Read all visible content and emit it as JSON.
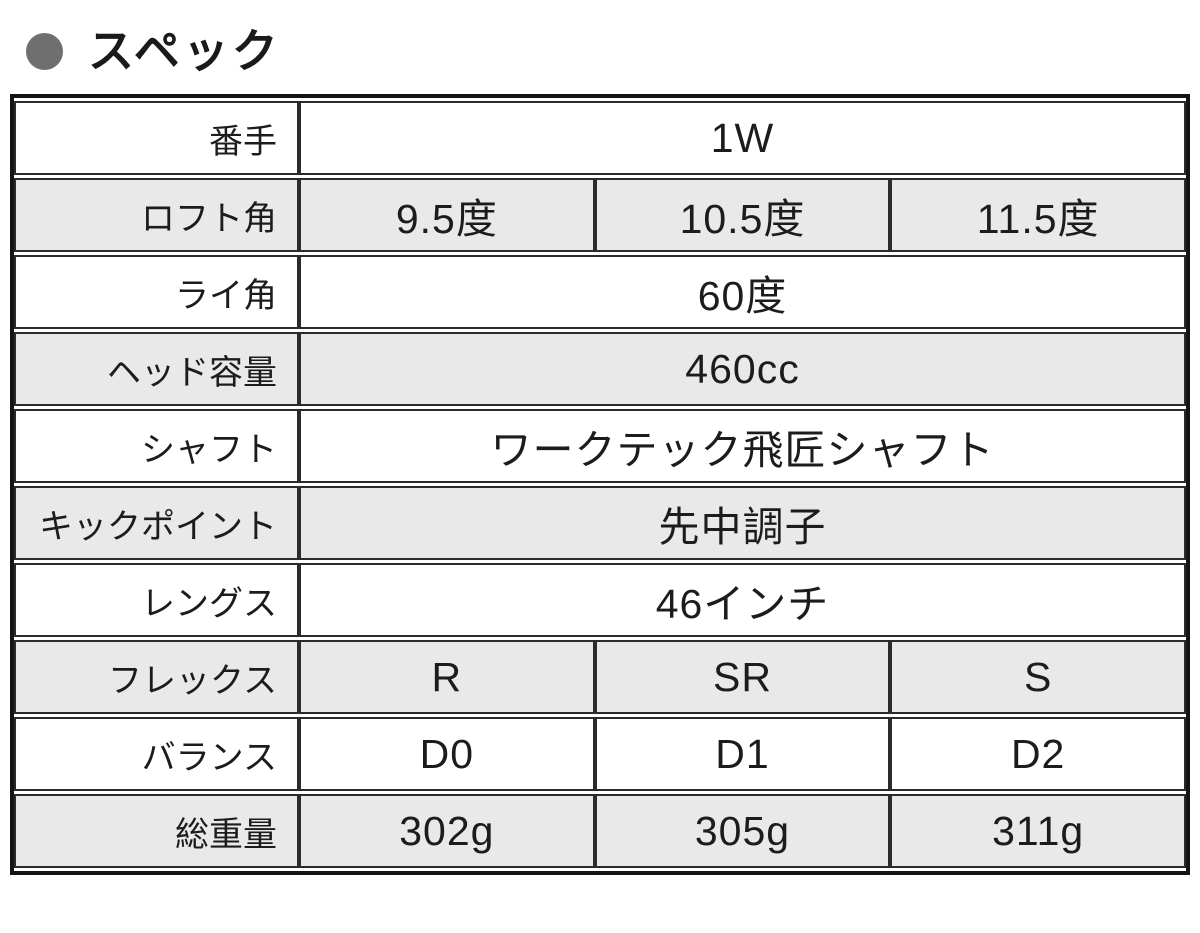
{
  "title": {
    "bullet_icon": "circle",
    "text": "スペック"
  },
  "colors": {
    "row_shaded_bg": "#e9e9e9",
    "row_bg": "#ffffff",
    "line": "#2b2b2b",
    "outer_border": "#141414",
    "bullet": "#6f6f6f",
    "text": "#1c1c1c"
  },
  "table": {
    "columns": 3,
    "rows": [
      {
        "label": "番手",
        "values": [
          "1W"
        ],
        "shaded": false
      },
      {
        "label": "ロフト角",
        "values": [
          "9.5度",
          "10.5度",
          "11.5度"
        ],
        "shaded": true
      },
      {
        "label": "ライ角",
        "values": [
          "60度"
        ],
        "shaded": false
      },
      {
        "label": "ヘッド容量",
        "values": [
          "460cc"
        ],
        "shaded": true
      },
      {
        "label": "シャフト",
        "values": [
          "ワークテック飛匠シャフト"
        ],
        "shaded": false
      },
      {
        "label": "キックポイント",
        "values": [
          "先中調子"
        ],
        "shaded": true
      },
      {
        "label": "レングス",
        "values": [
          "46インチ"
        ],
        "shaded": false
      },
      {
        "label": "フレックス",
        "values": [
          "R",
          "SR",
          "S"
        ],
        "shaded": true
      },
      {
        "label": "バランス",
        "values": [
          "D0",
          "D1",
          "D2"
        ],
        "shaded": false
      },
      {
        "label": "総重量",
        "values": [
          "302g",
          "305g",
          "311g"
        ],
        "shaded": true
      }
    ]
  }
}
